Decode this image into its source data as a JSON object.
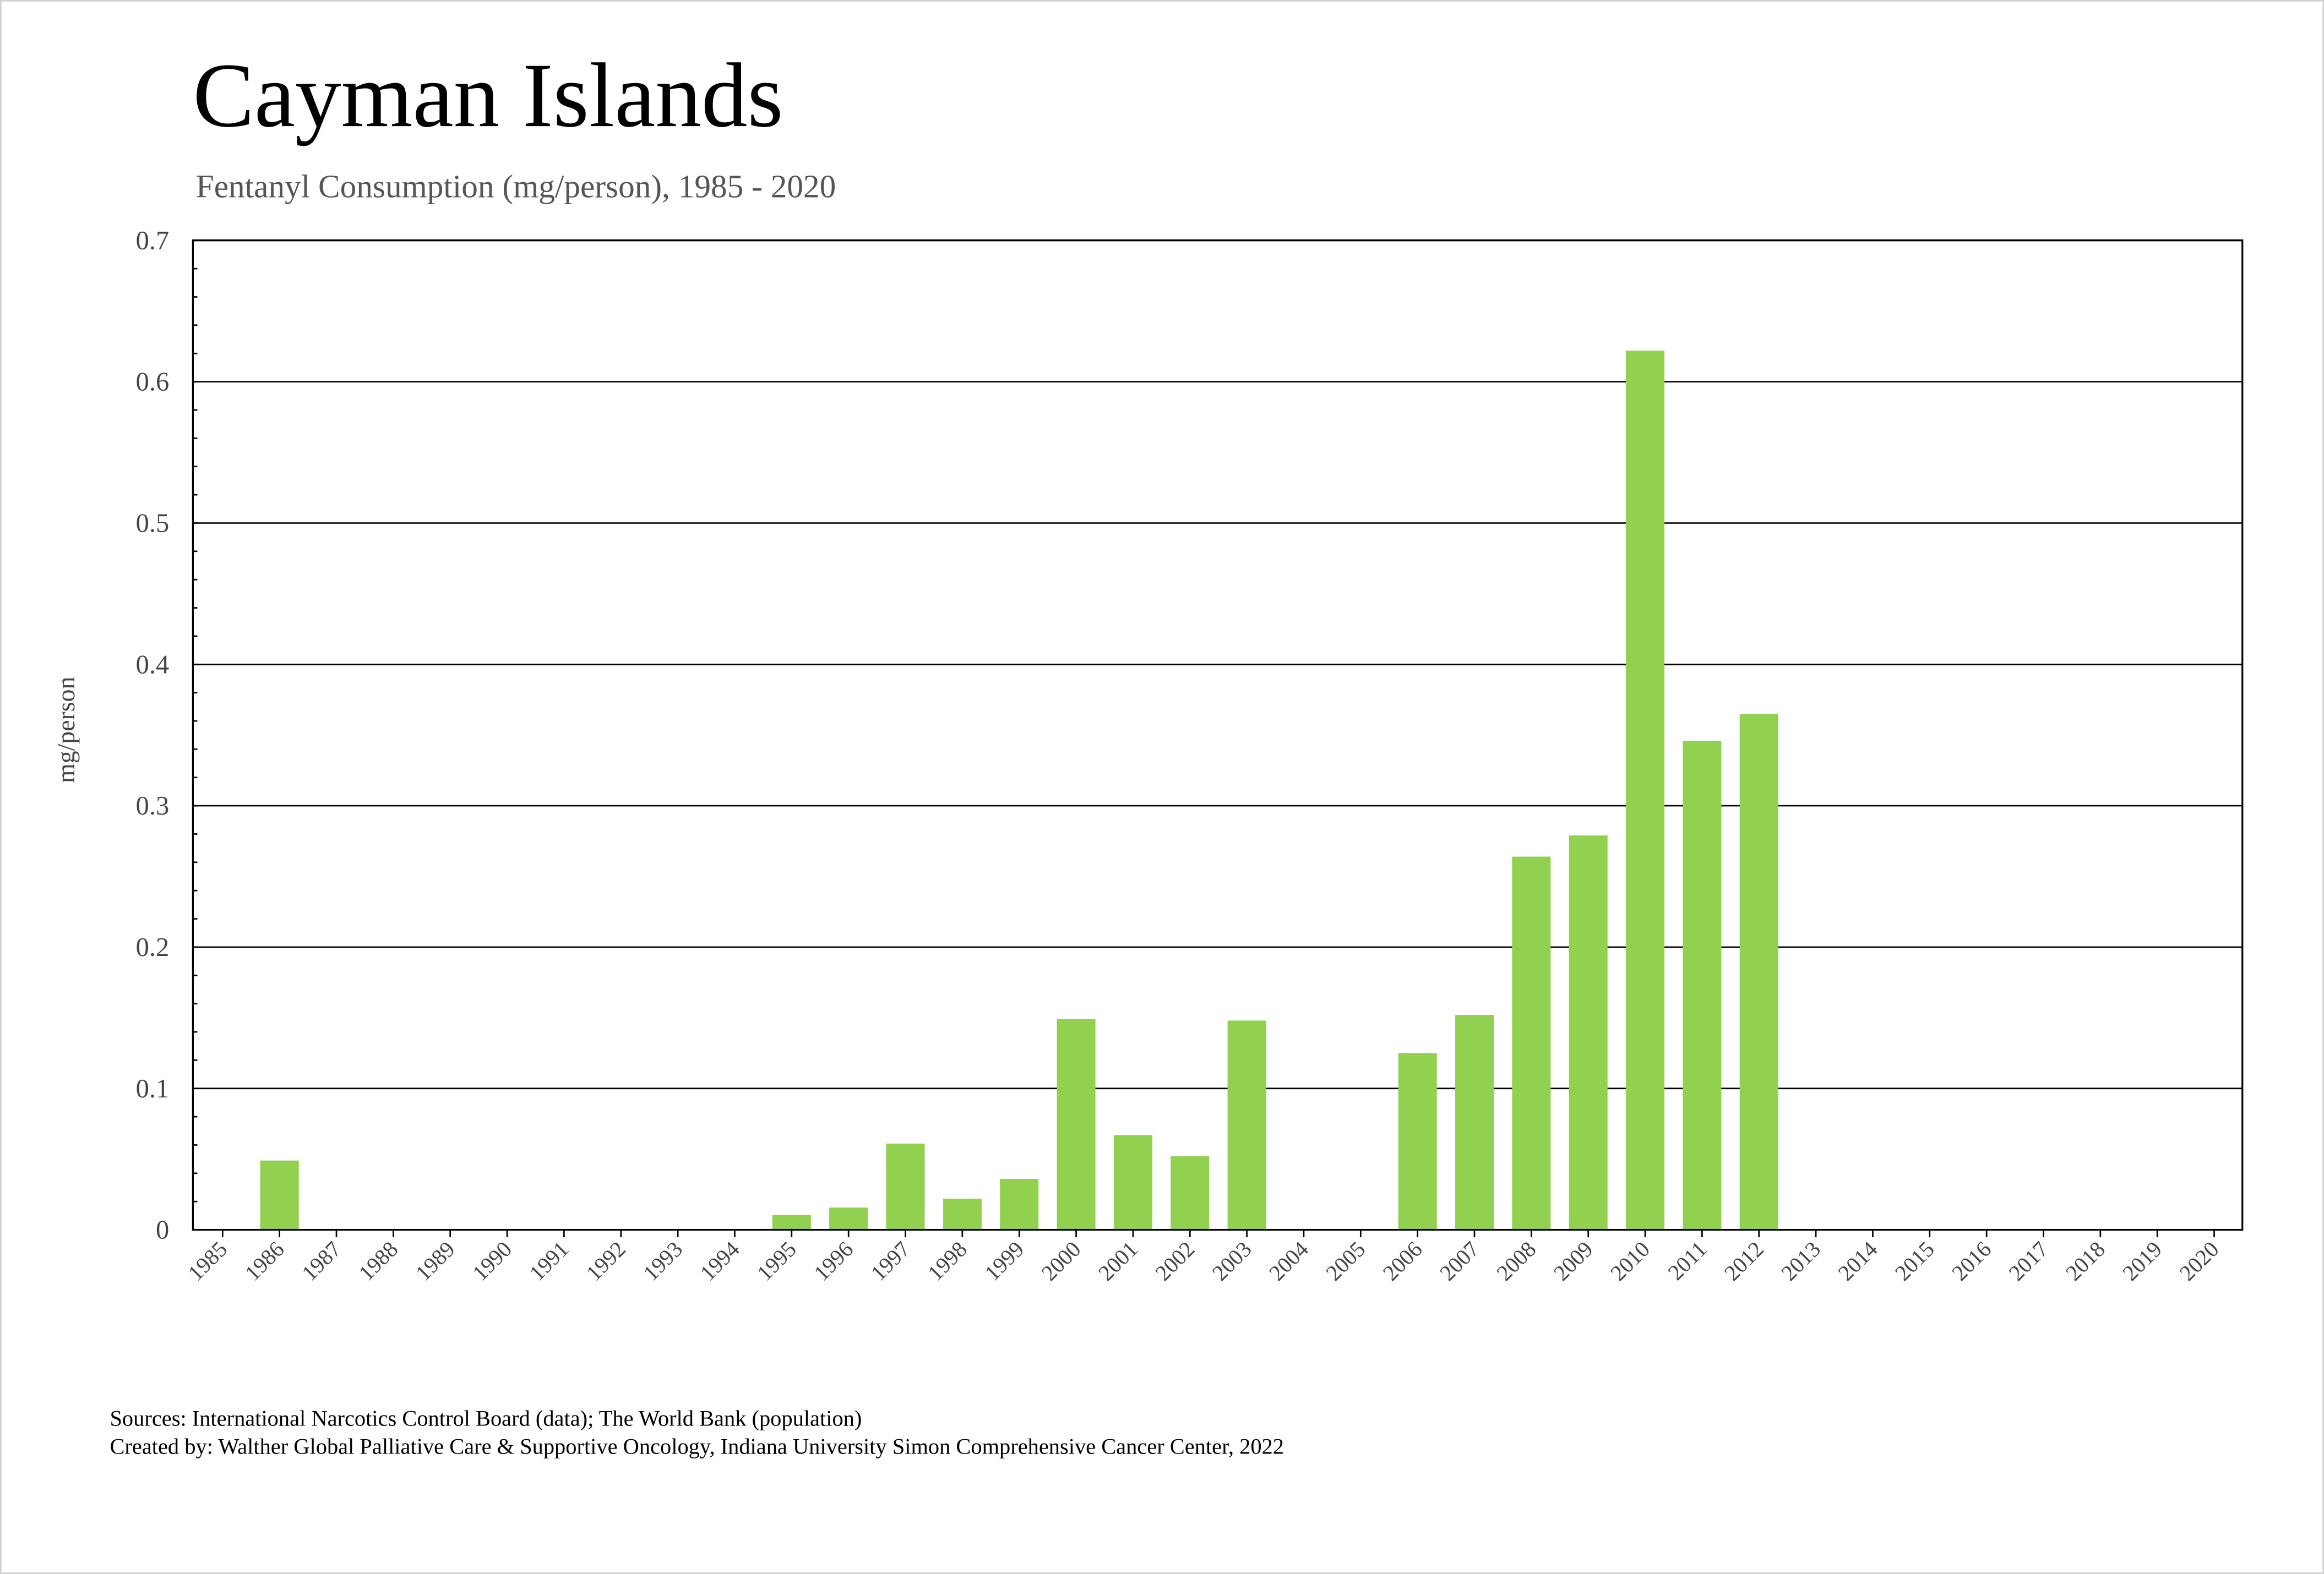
{
  "chart_data": {
    "type": "bar",
    "title": "Cayman Islands",
    "subtitle": "Fentanyl Consumption (mg/person), 1985 - 2020",
    "xlabel": "",
    "ylabel": "mg/person",
    "ylim": [
      0,
      0.7
    ],
    "yticks": [
      "0",
      "0.1",
      "0.2",
      "0.3",
      "0.4",
      "0.5",
      "0.6",
      "0.7"
    ],
    "grid": true,
    "bar_color": "#92d050",
    "categories": [
      "1985",
      "1986",
      "1987",
      "1988",
      "1989",
      "1990",
      "1991",
      "1992",
      "1993",
      "1994",
      "1995",
      "1996",
      "1997",
      "1998",
      "1999",
      "2000",
      "2001",
      "2002",
      "2003",
      "2004",
      "2005",
      "2006",
      "2007",
      "2008",
      "2009",
      "2010",
      "2011",
      "2012",
      "2013",
      "2014",
      "2015",
      "2016",
      "2017",
      "2018",
      "2019",
      "2020"
    ],
    "values": [
      0,
      0.049,
      0,
      0,
      0,
      0,
      0,
      0,
      0,
      0,
      0.0105,
      0.0157,
      0.061,
      0.022,
      0.036,
      0.149,
      0.067,
      0.052,
      0.148,
      0,
      0,
      0.125,
      0.152,
      0.264,
      0.279,
      0.622,
      0.346,
      0.365,
      0,
      0,
      0,
      0,
      0,
      0,
      0,
      0
    ]
  },
  "footer": {
    "sources": "Sources: International Narcotics Control Board (data); The World Bank (population)",
    "created_by": "Created by: Walther Global Palliative Care & Supportive Oncology, Indiana University Simon Comprehensive Cancer Center, 2022"
  }
}
